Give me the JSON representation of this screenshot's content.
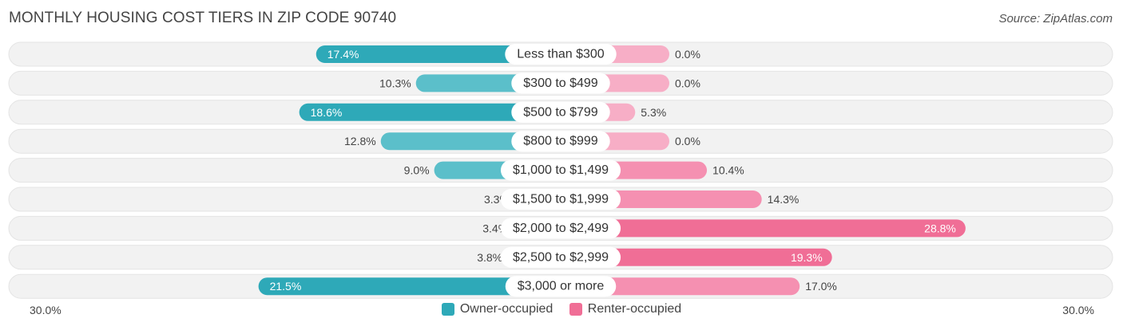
{
  "title": "MONTHLY HOUSING COST TIERS IN ZIP CODE 90740",
  "source": "Source: ZipAtlas.com",
  "axis": {
    "left_label": "30.0%",
    "right_label": "30.0%"
  },
  "legend": {
    "owner_label": "Owner-occupied",
    "renter_label": "Renter-occupied"
  },
  "colors": {
    "owner_dark": "#2ea9b8",
    "owner_light": "#8dd3dc",
    "renter_dark": "#f06e96",
    "renter_light": "#f7aec6",
    "row_bg": "#f2f2f2"
  },
  "chart_data": {
    "type": "bar",
    "orientation": "diverging-horizontal",
    "max": 30.0,
    "categories": [
      "Less than $300",
      "$300 to $499",
      "$500 to $799",
      "$800 to $999",
      "$1,000 to $1,499",
      "$1,500 to $1,999",
      "$2,000 to $2,499",
      "$2,500 to $2,999",
      "$3,000 or more"
    ],
    "series": [
      {
        "name": "Owner-occupied",
        "values": [
          17.4,
          10.3,
          18.6,
          12.8,
          9.0,
          3.3,
          3.4,
          3.8,
          21.5
        ]
      },
      {
        "name": "Renter-occupied",
        "values": [
          0.0,
          0.0,
          5.3,
          0.0,
          10.4,
          14.3,
          28.8,
          19.3,
          17.0
        ]
      }
    ]
  }
}
